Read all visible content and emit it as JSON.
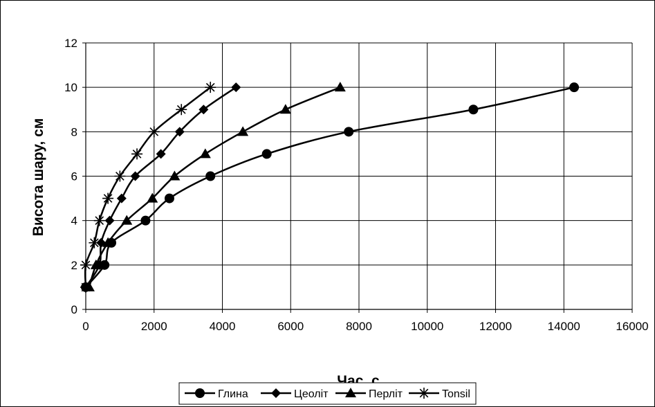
{
  "chart_data": {
    "type": "line",
    "xlabel": "Час, с",
    "ylabel": "Висота шару, см",
    "xlim": [
      0,
      16000
    ],
    "ylim": [
      0,
      12
    ],
    "x_ticks": [
      0,
      2000,
      4000,
      6000,
      8000,
      10000,
      12000,
      14000,
      16000
    ],
    "y_ticks": [
      0,
      2,
      4,
      6,
      8,
      10,
      12
    ],
    "grid": true,
    "legend_position": "bottom",
    "series": [
      {
        "name": "Глина",
        "marker": "circle",
        "points": [
          [
            0,
            1
          ],
          [
            550,
            2
          ],
          [
            750,
            3
          ],
          [
            1750,
            4
          ],
          [
            2450,
            5
          ],
          [
            3650,
            6
          ],
          [
            5300,
            7
          ],
          [
            7700,
            8
          ],
          [
            11350,
            9
          ],
          [
            14300,
            10
          ]
        ]
      },
      {
        "name": "Цеоліт",
        "marker": "diamond",
        "points": [
          [
            0,
            1
          ],
          [
            400,
            2
          ],
          [
            450,
            3
          ],
          [
            700,
            4
          ],
          [
            1050,
            5
          ],
          [
            1450,
            6
          ],
          [
            2200,
            7
          ],
          [
            2750,
            8
          ],
          [
            3450,
            9
          ],
          [
            4400,
            10
          ]
        ]
      },
      {
        "name": "Перліт",
        "marker": "triangle",
        "points": [
          [
            100,
            1
          ],
          [
            300,
            2
          ],
          [
            650,
            3
          ],
          [
            1200,
            4
          ],
          [
            1950,
            5
          ],
          [
            2600,
            6
          ],
          [
            3500,
            7
          ],
          [
            4600,
            8
          ],
          [
            5850,
            9
          ],
          [
            7450,
            10
          ]
        ]
      },
      {
        "name": "Tonsil",
        "marker": "star",
        "points": [
          [
            0,
            1
          ],
          [
            0,
            2
          ],
          [
            250,
            3
          ],
          [
            400,
            4
          ],
          [
            650,
            5
          ],
          [
            1000,
            6
          ],
          [
            1500,
            7
          ],
          [
            2000,
            8
          ],
          [
            2800,
            9
          ],
          [
            3650,
            10
          ]
        ]
      }
    ]
  }
}
